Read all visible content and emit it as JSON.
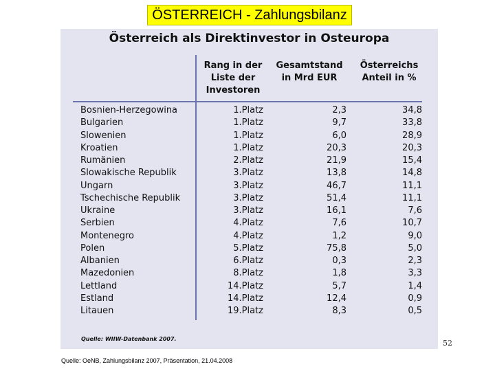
{
  "slide": {
    "title": "ÖSTERREICH - Zahlungsbilanz",
    "page_number": "52",
    "footer": "Quelle: OeNB, Zahlungsbilanz 2007, Präsentation, 21.04.2008"
  },
  "table": {
    "title": "Österreich als Direktinvestor in Osteuropa",
    "headers": {
      "rank": [
        "Rang in der",
        "Liste der",
        "Investoren"
      ],
      "total": [
        "Gesamtstand",
        "in Mrd EUR"
      ],
      "share": [
        "Österreichs",
        "Anteil in %"
      ]
    },
    "rows": [
      {
        "country": "Bosnien-Herzegowina",
        "rank": "1.Platz",
        "total": "2,3",
        "share": "34,8"
      },
      {
        "country": "Bulgarien",
        "rank": "1.Platz",
        "total": "9,7",
        "share": "33,8"
      },
      {
        "country": "Slowenien",
        "rank": "1.Platz",
        "total": "6,0",
        "share": "28,9"
      },
      {
        "country": "Kroatien",
        "rank": "1.Platz",
        "total": "20,3",
        "share": "20,3"
      },
      {
        "country": "Rumänien",
        "rank": "2.Platz",
        "total": "21,9",
        "share": "15,4"
      },
      {
        "country": "Slowakische Republik",
        "rank": "3.Platz",
        "total": "13,8",
        "share": "14,8"
      },
      {
        "country": "Ungarn",
        "rank": "3.Platz",
        "total": "46,7",
        "share": "11,1"
      },
      {
        "country": "Tschechische Republik",
        "rank": "3.Platz",
        "total": "51,4",
        "share": "11,1"
      },
      {
        "country": "Ukraine",
        "rank": "3.Platz",
        "total": "16,1",
        "share": "7,6"
      },
      {
        "country": "Serbien",
        "rank": "4.Platz",
        "total": "7,6",
        "share": "10,7"
      },
      {
        "country": "Montenegro",
        "rank": "4.Platz",
        "total": "1,2",
        "share": "9,0"
      },
      {
        "country": "Polen",
        "rank": "5.Platz",
        "total": "75,8",
        "share": "5,0"
      },
      {
        "country": "Albanien",
        "rank": "6.Platz",
        "total": "0,3",
        "share": "2,3"
      },
      {
        "country": "Mazedonien",
        "rank": "8.Platz",
        "total": "1,8",
        "share": "3,3"
      },
      {
        "country": "Lettland",
        "rank": "14.Platz",
        "total": "5,7",
        "share": "1,4"
      },
      {
        "country": "Estland",
        "rank": "14.Platz",
        "total": "12,4",
        "share": "0,9"
      },
      {
        "country": "Litauen",
        "rank": "19.Platz",
        "total": "8,3",
        "share": "0,5"
      }
    ],
    "source": "Quelle: WIIW-Datenbank 2007."
  }
}
